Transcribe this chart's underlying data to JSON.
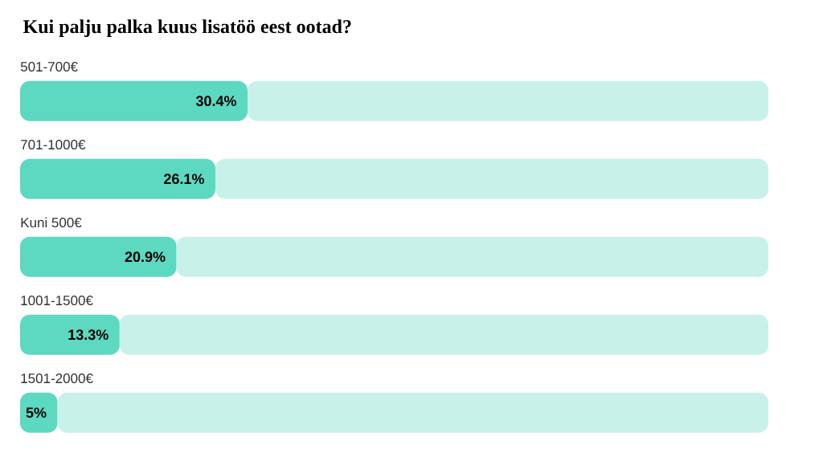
{
  "chart_data": {
    "type": "bar",
    "orientation": "horizontal",
    "stacked": true,
    "title": "Kui palju palka kuus lisatöö eest ootad?",
    "categories": [
      "501-700€",
      "701-1000€",
      "Kuni 500€",
      "1001-1500€",
      "1501-2000€"
    ],
    "series": [
      {
        "color": "#5dd9c1",
        "values": [
          30.4,
          26.1,
          20.9,
          13.3,
          5
        ],
        "value_labels": [
          "30.4%",
          "26.1%",
          "20.9%",
          "13.3%",
          "5%"
        ]
      },
      {
        "color": "#c8f2e9",
        "values": [
          69.6,
          73.9,
          79.1,
          86.7,
          95
        ]
      }
    ],
    "xlim": [
      0,
      100
    ]
  }
}
